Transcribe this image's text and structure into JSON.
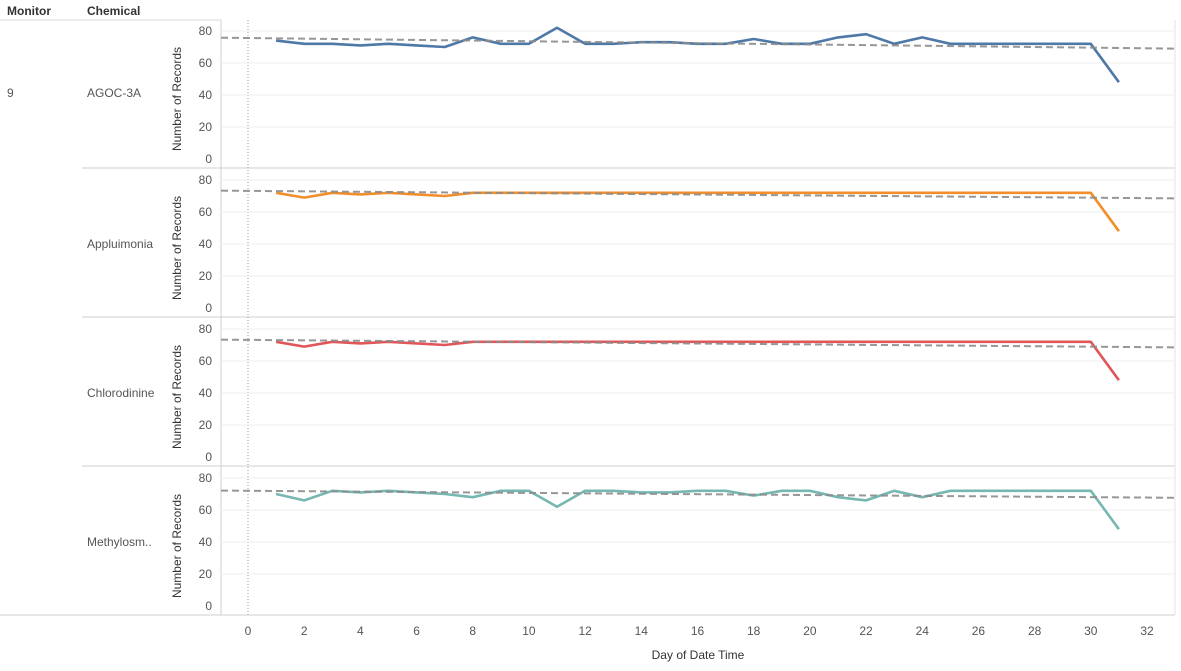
{
  "headers": {
    "monitor": "Monitor",
    "chemical": "Chemical"
  },
  "chart_data": {
    "type": "line",
    "title": "",
    "xlabel": "Day of Date Time",
    "ylabel": "Number of Records",
    "xlim": [
      -1,
      33
    ],
    "ylim": [
      0,
      85
    ],
    "x_ticks": [
      0,
      2,
      4,
      6,
      8,
      10,
      12,
      14,
      16,
      18,
      20,
      22,
      24,
      26,
      28,
      30,
      32
    ],
    "y_ticks": [
      0,
      20,
      40,
      60,
      80
    ],
    "reference_line_x": 0,
    "trend_lines": "dashed linear trend per panel",
    "monitor": "9",
    "x": [
      1,
      2,
      3,
      4,
      5,
      6,
      7,
      8,
      9,
      10,
      11,
      12,
      13,
      14,
      15,
      16,
      17,
      18,
      19,
      20,
      21,
      22,
      23,
      24,
      25,
      26,
      27,
      28,
      29,
      30,
      31
    ],
    "series": [
      {
        "name": "AGOC-3A",
        "color": "#4e79a7",
        "values": [
          74,
          72,
          72,
          71,
          72,
          71,
          70,
          76,
          72,
          72,
          82,
          72,
          72,
          73,
          73,
          72,
          72,
          75,
          72,
          72,
          76,
          78,
          72,
          76,
          72,
          72,
          72,
          72,
          72,
          72,
          48
        ],
        "trend": [
          75.6,
          69.4
        ]
      },
      {
        "name": "Appluimonia",
        "color": "#f28e2b",
        "values": [
          72,
          69,
          72,
          71,
          72,
          71,
          70,
          72,
          72,
          72,
          72,
          72,
          72,
          72,
          72,
          72,
          72,
          72,
          72,
          72,
          72,
          72,
          72,
          72,
          72,
          72,
          72,
          72,
          72,
          72,
          48
        ],
        "trend": [
          73.2,
          68.8
        ]
      },
      {
        "name": "Chlorodinine",
        "color": "#e15759",
        "values": [
          72,
          69,
          72,
          71,
          72,
          71,
          70,
          72,
          72,
          72,
          72,
          72,
          72,
          72,
          72,
          72,
          72,
          72,
          72,
          72,
          72,
          72,
          72,
          72,
          72,
          72,
          72,
          72,
          72,
          72,
          48
        ],
        "trend": [
          73.2,
          68.8
        ]
      },
      {
        "name": "Methylosm..",
        "color": "#76b7b2",
        "values": [
          70,
          66,
          72,
          71,
          72,
          71,
          70,
          68,
          72,
          72,
          62,
          72,
          72,
          71,
          71,
          72,
          72,
          69,
          72,
          72,
          68,
          66,
          72,
          68,
          72,
          72,
          72,
          72,
          72,
          72,
          48
        ],
        "trend": [
          72.0,
          67.9
        ]
      }
    ]
  }
}
